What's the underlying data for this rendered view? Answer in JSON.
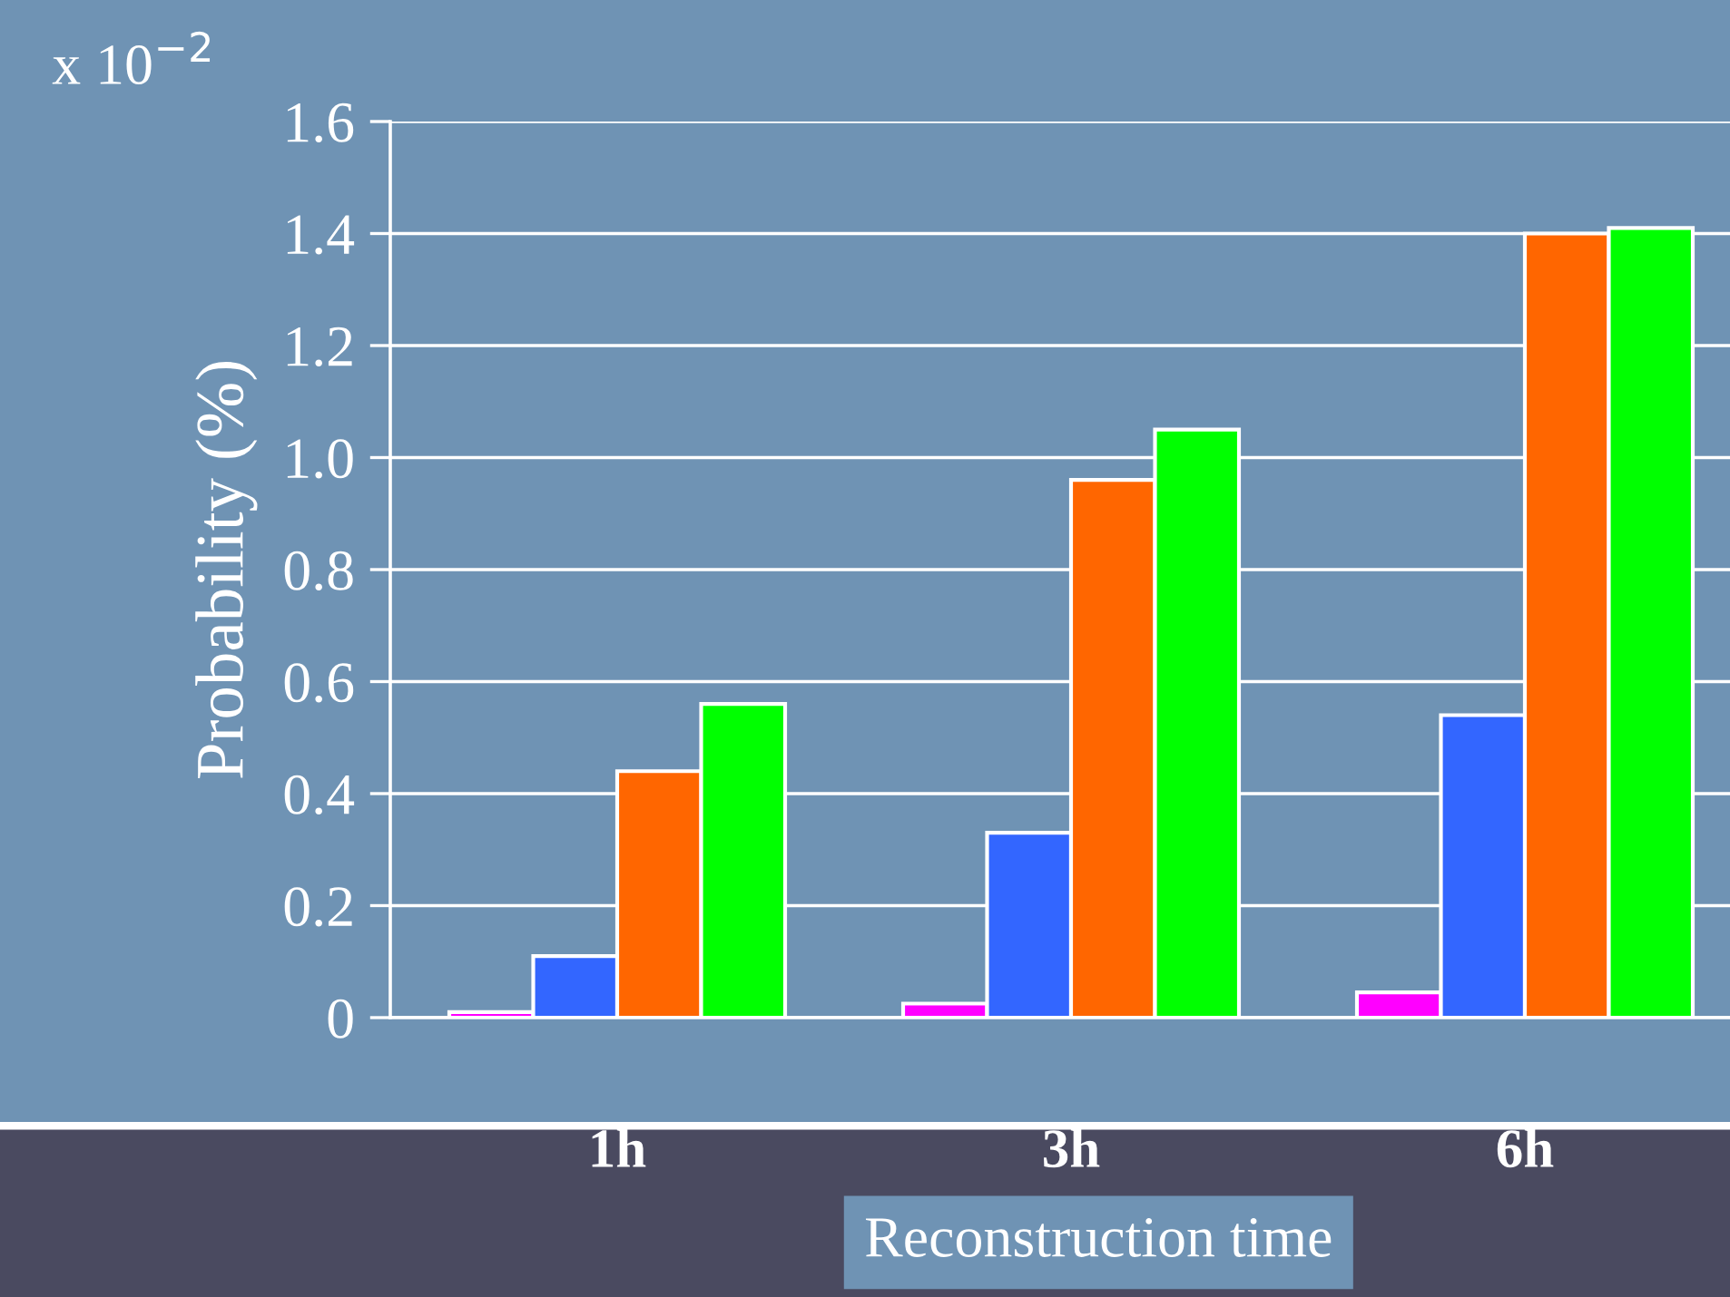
{
  "chart_data": {
    "type": "bar",
    "categories": [
      "1h",
      "3h",
      "6h"
    ],
    "series": [
      {
        "color": "#ff00ff",
        "values": [
          0.01,
          0.025,
          0.045
        ]
      },
      {
        "color": "#3366ff",
        "values": [
          0.11,
          0.33,
          0.54
        ]
      },
      {
        "color": "#ff6600",
        "values": [
          0.44,
          0.96,
          1.4
        ]
      },
      {
        "color": "#00ff00",
        "values": [
          0.56,
          1.05,
          1.41
        ]
      }
    ],
    "ylabel": "Probability (%)",
    "xlabel": "Reconstruction time",
    "annotations": [
      "x 10$^{−2}$"
    ],
    "ylim": [
      0,
      1.6
    ],
    "yticks": [
      {
        "value": 0,
        "label": "0"
      },
      0.2,
      0.4,
      0.6,
      0.8,
      {
        "value": 1.0,
        "label": "1.0"
      },
      1.2,
      1.4,
      1.6
    ],
    "grid": "y",
    "legend": false
  }
}
